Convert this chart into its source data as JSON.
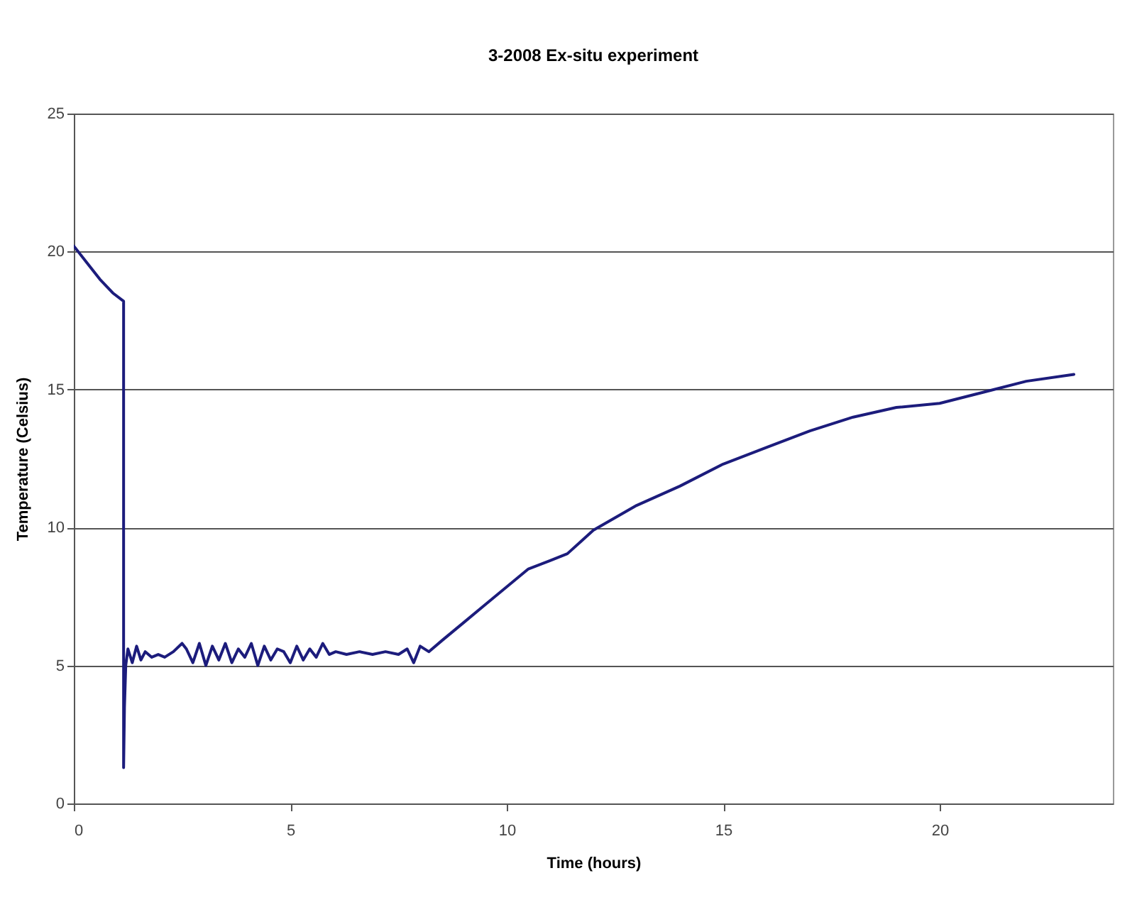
{
  "chart_data": {
    "type": "line",
    "title": "3-2008 Ex-situ experiment",
    "xlabel": "Time (hours)",
    "ylabel": "Temperature (Celsius)",
    "xlim": [
      0,
      24
    ],
    "xticks": [
      0,
      5,
      10,
      15,
      20
    ],
    "ylim": [
      0,
      25
    ],
    "yticks": [
      0,
      5,
      10,
      15,
      20,
      25
    ],
    "grid": "y",
    "marker": "none",
    "line_style": "solid",
    "series": [
      {
        "color": "#1c1c7c",
        "x": [
          0,
          0.3,
          0.6,
          0.9,
          1.15,
          1.15,
          1.17,
          1.2,
          1.25,
          1.35,
          1.45,
          1.55,
          1.65,
          1.8,
          1.95,
          2.1,
          2.3,
          2.5,
          2.6,
          2.75,
          2.9,
          3.05,
          3.2,
          3.35,
          3.5,
          3.65,
          3.8,
          3.95,
          4.1,
          4.25,
          4.4,
          4.55,
          4.7,
          4.85,
          5.0,
          5.15,
          5.3,
          5.45,
          5.6,
          5.75,
          5.9,
          6.05,
          6.3,
          6.6,
          6.9,
          7.2,
          7.5,
          7.7,
          7.85,
          8.0,
          8.2,
          8.5,
          9,
          9.5,
          10,
          10.5,
          11,
          11.4,
          12,
          13,
          14,
          15,
          16,
          17,
          18,
          19,
          20,
          21,
          22,
          23.1
        ],
        "values": [
          20.2,
          19.6,
          19.0,
          18.5,
          18.2,
          1.3,
          3.5,
          5.0,
          5.6,
          5.1,
          5.7,
          5.2,
          5.5,
          5.3,
          5.4,
          5.3,
          5.5,
          5.8,
          5.6,
          5.1,
          5.8,
          5.0,
          5.7,
          5.2,
          5.8,
          5.1,
          5.6,
          5.3,
          5.8,
          5.0,
          5.7,
          5.2,
          5.6,
          5.5,
          5.1,
          5.7,
          5.2,
          5.6,
          5.3,
          5.8,
          5.4,
          5.5,
          5.4,
          5.5,
          5.4,
          5.5,
          5.4,
          5.6,
          5.1,
          5.7,
          5.5,
          5.9,
          6.55,
          7.2,
          7.85,
          8.5,
          8.8,
          9.05,
          9.9,
          10.8,
          11.5,
          12.3,
          12.9,
          13.5,
          14.0,
          14.35,
          14.5,
          14.9,
          15.3,
          15.55
        ]
      }
    ]
  }
}
